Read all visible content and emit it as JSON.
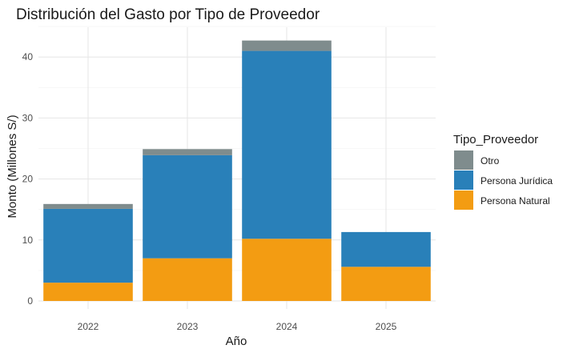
{
  "chart_data": {
    "type": "bar",
    "stacked": true,
    "title": "Distribución del Gasto por Tipo de Proveedor",
    "xlabel": "Año",
    "ylabel": "Monto (Millones S/)",
    "categories": [
      "2022",
      "2023",
      "2024",
      "2025"
    ],
    "ylim": [
      0,
      44
    ],
    "yticks": [
      0,
      10,
      20,
      30,
      40
    ],
    "grid": true,
    "legend_title": "Tipo_Proveedor",
    "legend_position": "right",
    "series": [
      {
        "name": "Persona Natural",
        "color": "#F39C12",
        "values": [
          3.0,
          7.0,
          10.2,
          5.6
        ]
      },
      {
        "name": "Persona Jurídica",
        "color": "#2980B9",
        "values": [
          12.1,
          16.9,
          30.8,
          5.7
        ]
      },
      {
        "name": "Otro",
        "color": "#7F8C8D",
        "values": [
          0.8,
          1.0,
          1.7,
          0.0
        ]
      }
    ],
    "legend_order": [
      "Otro",
      "Persona Jurídica",
      "Persona Natural"
    ]
  }
}
